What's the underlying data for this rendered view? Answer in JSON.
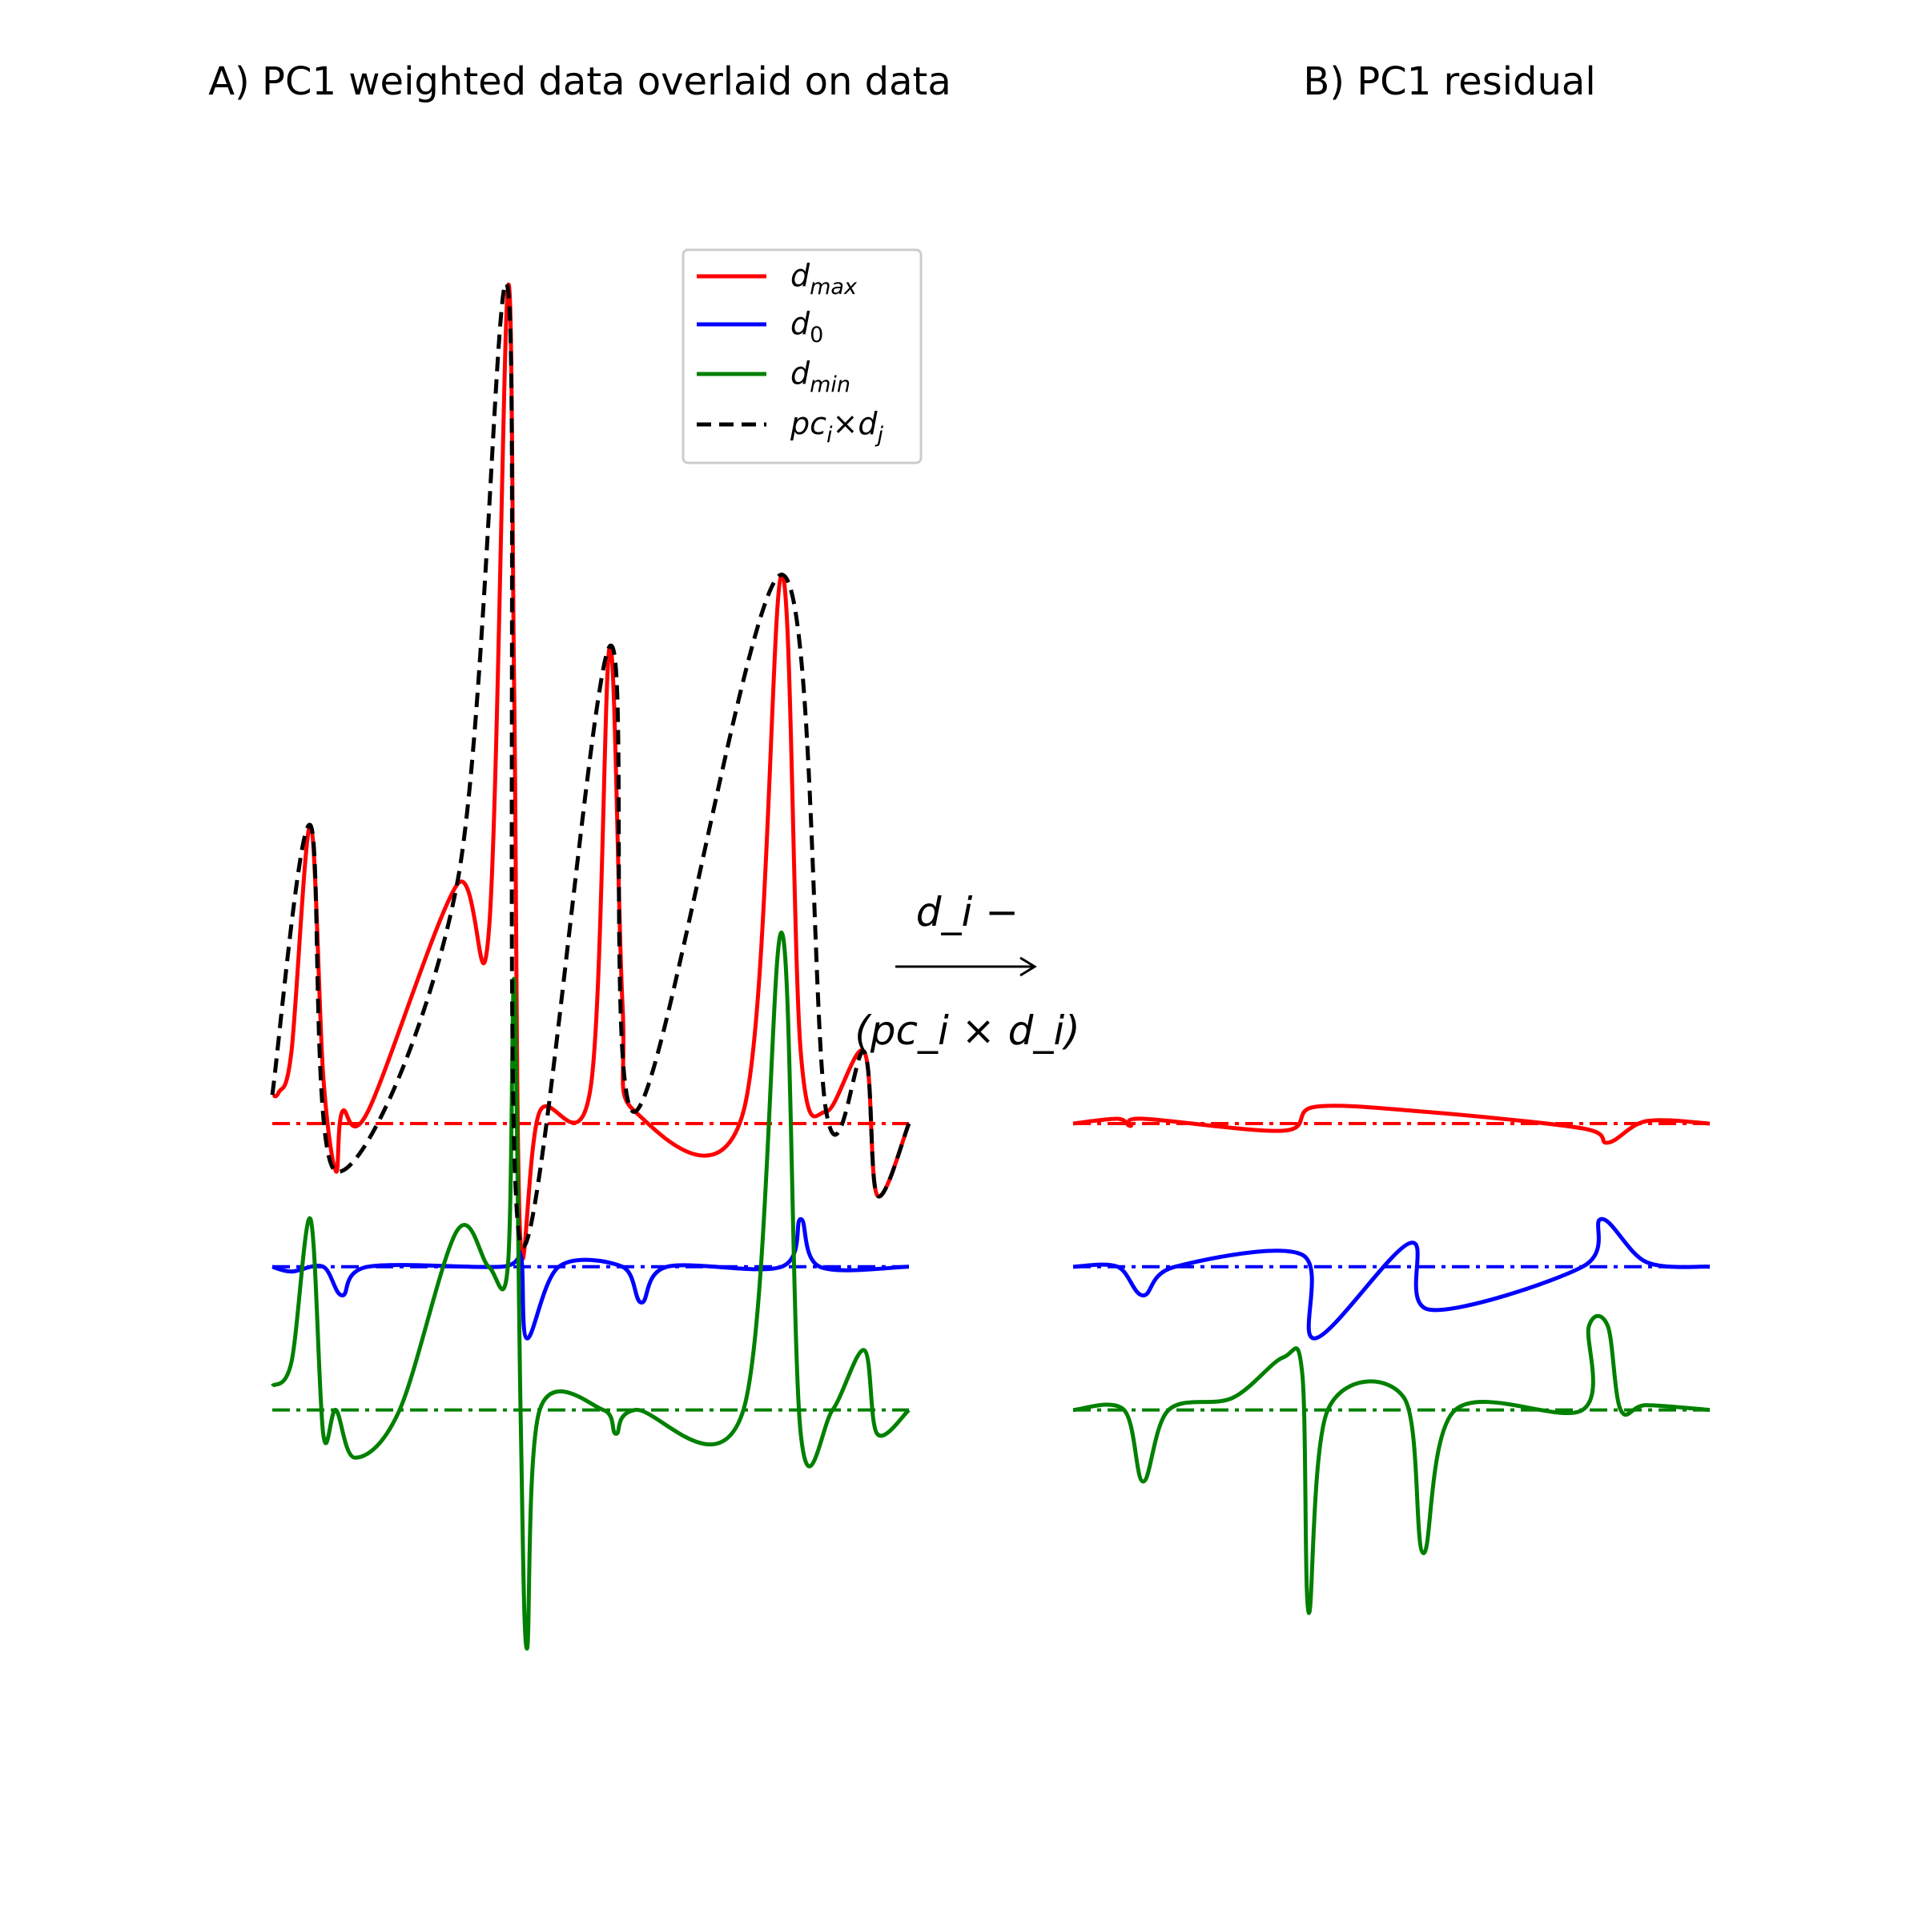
{
  "titles": {
    "panel_a": "A) PC1 weighted data overlaid on data",
    "panel_b": "B) PC1 residual"
  },
  "operation": {
    "top": "d_i −",
    "bottom": "(pc_i × d_i)"
  },
  "legend": {
    "items": [
      {
        "base": "d",
        "sub": "max",
        "color": "#ff0000",
        "style": "solid"
      },
      {
        "base": "d",
        "sub": "0",
        "color": "#0000ff",
        "style": "solid"
      },
      {
        "base": "d",
        "sub": "min",
        "color": "#008000",
        "style": "solid"
      },
      {
        "label_a": "pc",
        "sub_a": "i",
        "times": "×",
        "label_b": "d",
        "sub_b": "j",
        "color": "#000000",
        "style": "dashed"
      }
    ]
  },
  "colors": {
    "dmax": "#ff0000",
    "d0": "#0000ff",
    "dmin": "#008000",
    "pc": "#000000"
  },
  "chart_data": [
    {
      "type": "line",
      "title": "A) PC1 weighted data overlaid on data",
      "axes": "off",
      "x_range": [
        0,
        1
      ],
      "baselines": {
        "dmax": 0,
        "d0": -0.6,
        "dmin": -1.2
      },
      "series": [
        {
          "name": "d_max",
          "color": "#ff0000",
          "style": "solid",
          "points": [
            [
              0,
              0.12
            ],
            [
              0.01,
              0.13
            ],
            [
              0.03,
              0.3
            ],
            [
              0.06,
              1.25
            ],
            [
              0.08,
              0.2
            ],
            [
              0.1,
              -0.2
            ],
            [
              0.11,
              0.05
            ],
            [
              0.15,
              0.05
            ],
            [
              0.29,
              1
            ],
            [
              0.34,
              0.8
            ],
            [
              0.37,
              3.5
            ],
            [
              0.38,
              1.8
            ],
            [
              0.39,
              -0.5
            ],
            [
              0.42,
              0.05
            ],
            [
              0.5,
              0.15
            ],
            [
              0.53,
              2
            ],
            [
              0.55,
              0.5
            ],
            [
              0.57,
              0.05
            ],
            [
              0.74,
              0.05
            ],
            [
              0.8,
              2.3
            ],
            [
              0.83,
              0.3
            ],
            [
              0.87,
              0.05
            ],
            [
              0.93,
              0.3
            ],
            [
              0.95,
              -0.3
            ],
            [
              1,
              0
            ]
          ]
        },
        {
          "name": "d_0",
          "color": "#0000ff",
          "style": "solid",
          "points": [
            [
              0,
              -0.6
            ],
            [
              0.03,
              -0.62
            ],
            [
              0.08,
              -0.6
            ],
            [
              0.11,
              -0.72
            ],
            [
              0.15,
              -0.6
            ],
            [
              0.36,
              -0.6
            ],
            [
              0.39,
              -0.55
            ],
            [
              0.4,
              -0.9
            ],
            [
              0.45,
              -0.6
            ],
            [
              0.55,
              -0.6
            ],
            [
              0.58,
              -0.75
            ],
            [
              0.62,
              -0.6
            ],
            [
              0.8,
              -0.6
            ],
            [
              0.83,
              -0.4
            ],
            [
              0.86,
              -0.6
            ],
            [
              1,
              -0.6
            ]
          ]
        },
        {
          "name": "d_min",
          "color": "#008000",
          "style": "solid",
          "points": [
            [
              0,
              -1.1
            ],
            [
              0.03,
              -1.0
            ],
            [
              0.06,
              -0.4
            ],
            [
              0.08,
              -1.3
            ],
            [
              0.1,
              -1.2
            ],
            [
              0.13,
              -1.4
            ],
            [
              0.2,
              -1.2
            ],
            [
              0.29,
              -0.45
            ],
            [
              0.34,
              -0.6
            ],
            [
              0.37,
              -0.6
            ],
            [
              0.38,
              0.6
            ],
            [
              0.39,
              -1.2
            ],
            [
              0.4,
              -2.2
            ],
            [
              0.42,
              -1.2
            ],
            [
              0.52,
              -1.2
            ],
            [
              0.54,
              -1.3
            ],
            [
              0.57,
              -1.2
            ],
            [
              0.74,
              -1.2
            ],
            [
              0.8,
              0.8
            ],
            [
              0.83,
              -1.3
            ],
            [
              0.88,
              -1.2
            ],
            [
              0.93,
              -0.95
            ],
            [
              0.95,
              -1.3
            ],
            [
              1,
              -1.2
            ]
          ]
        },
        {
          "name": "pc_i x d_j",
          "color": "#000000",
          "style": "dashed",
          "points": [
            [
              0,
              0.12
            ],
            [
              0.06,
              1.25
            ],
            [
              0.1,
              -0.2
            ],
            [
              0.29,
              1
            ],
            [
              0.37,
              3.5
            ],
            [
              0.39,
              -0.5
            ],
            [
              0.53,
              2
            ],
            [
              0.57,
              0.05
            ],
            [
              0.8,
              2.3
            ],
            [
              0.87,
              0.05
            ],
            [
              0.93,
              0.3
            ],
            [
              0.95,
              -0.3
            ],
            [
              1,
              0
            ]
          ]
        }
      ]
    },
    {
      "type": "line",
      "title": "B) PC1 residual",
      "axes": "off",
      "x_range": [
        0,
        1
      ],
      "baselines": {
        "dmax": 0,
        "d0": -0.6,
        "dmin": -1.2
      },
      "series": [
        {
          "name": "d_max",
          "color": "#ff0000",
          "style": "solid",
          "points": [
            [
              0,
              0
            ],
            [
              0.07,
              0.02
            ],
            [
              0.09,
              -0.01
            ],
            [
              0.11,
              0.02
            ],
            [
              0.33,
              -0.03
            ],
            [
              0.38,
              0.07
            ],
            [
              0.55,
              0.05
            ],
            [
              0.8,
              -0.02
            ],
            [
              0.84,
              -0.08
            ],
            [
              0.9,
              0.01
            ],
            [
              1,
              0
            ]
          ]
        },
        {
          "name": "d_0",
          "color": "#0000ff",
          "style": "solid",
          "points": [
            [
              0,
              -0.6
            ],
            [
              0.07,
              -0.6
            ],
            [
              0.11,
              -0.72
            ],
            [
              0.16,
              -0.6
            ],
            [
              0.36,
              -0.55
            ],
            [
              0.38,
              -0.9
            ],
            [
              0.53,
              -0.5
            ],
            [
              0.56,
              -0.78
            ],
            [
              0.8,
              -0.6
            ],
            [
              0.83,
              -0.4
            ],
            [
              0.9,
              -0.58
            ],
            [
              1,
              -0.6
            ]
          ]
        },
        {
          "name": "d_min",
          "color": "#008000",
          "style": "solid",
          "points": [
            [
              0,
              -1.2
            ],
            [
              0.08,
              -1.2
            ],
            [
              0.11,
              -1.5
            ],
            [
              0.15,
              -1.2
            ],
            [
              0.25,
              -1.15
            ],
            [
              0.33,
              -0.98
            ],
            [
              0.36,
              -1.05
            ],
            [
              0.37,
              -2.05
            ],
            [
              0.4,
              -1.2
            ],
            [
              0.52,
              -1.15
            ],
            [
              0.55,
              -1.8
            ],
            [
              0.6,
              -1.2
            ],
            [
              0.8,
              -1.2
            ],
            [
              0.81,
              -0.85
            ],
            [
              0.84,
              -0.85
            ],
            [
              0.86,
              -1.2
            ],
            [
              0.9,
              -1.18
            ],
            [
              1,
              -1.2
            ]
          ]
        }
      ]
    }
  ]
}
